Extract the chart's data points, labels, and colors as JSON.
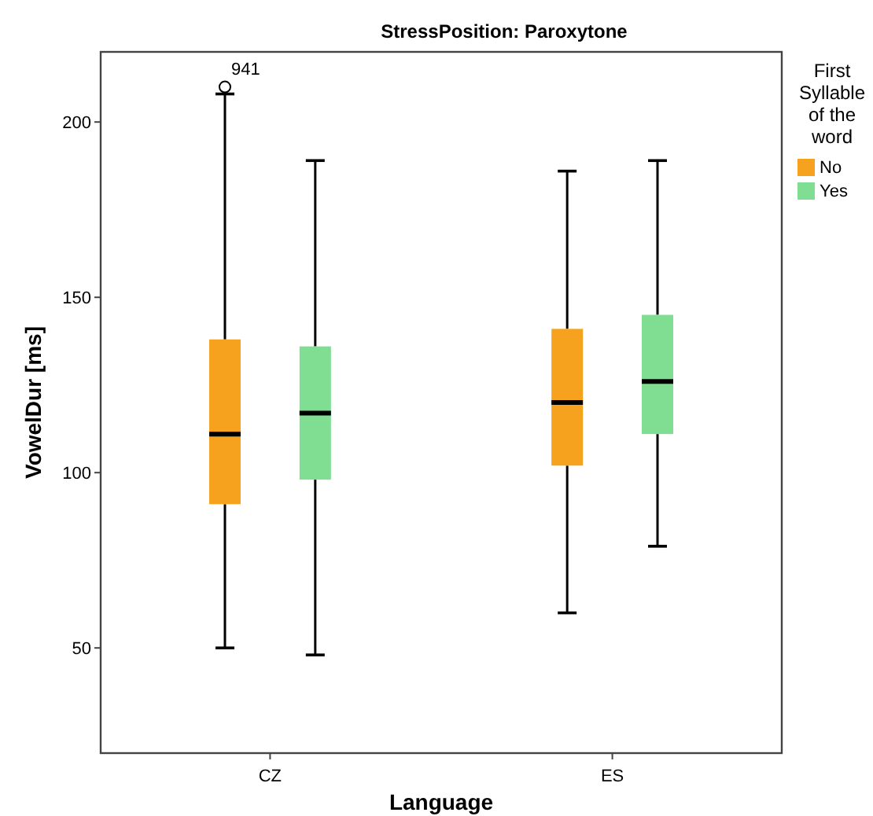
{
  "chart_data": {
    "type": "box",
    "title": "StressPosition: Paroxytone",
    "xlabel": "Language",
    "ylabel": "VowelDur [ms]",
    "legend_title": "First Syllable of the word",
    "categories": [
      "CZ",
      "ES"
    ],
    "series": [
      {
        "name": "No",
        "color": "#f7a21e",
        "boxes": [
          {
            "low": 50,
            "q1": 91,
            "median": 111,
            "q3": 138,
            "high": 208,
            "outliers": [
              210
            ]
          },
          {
            "low": 60,
            "q1": 102,
            "median": 120,
            "q3": 141,
            "high": 186
          }
        ]
      },
      {
        "name": "Yes",
        "color": "#80de92",
        "boxes": [
          {
            "low": 48,
            "q1": 98,
            "median": 117,
            "q3": 136,
            "high": 189
          },
          {
            "low": 79,
            "q1": 111,
            "median": 126,
            "q3": 145,
            "high": 189
          }
        ]
      }
    ],
    "annotations": [
      "941"
    ],
    "ylim": [
      20,
      220
    ],
    "yticks": [
      50,
      100,
      150,
      200
    ],
    "grid": false,
    "legend": "right"
  }
}
